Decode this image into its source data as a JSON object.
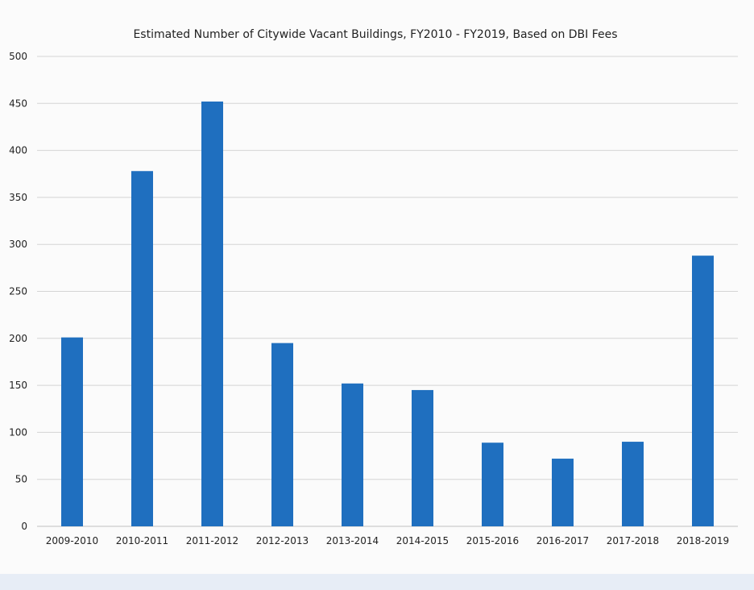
{
  "chart_data": {
    "type": "bar",
    "title": "Estimated Number of Citywide Vacant Buildings, FY2010 - FY2019, Based on DBI Fees",
    "xlabel": "",
    "ylabel": "",
    "categories": [
      "2009-2010",
      "2010-2011",
      "2011-2012",
      "2012-2013",
      "2013-2014",
      "2014-2015",
      "2015-2016",
      "2016-2017",
      "2017-2018",
      "2018-2019"
    ],
    "series": [
      {
        "values": [
          201,
          378,
          452,
          195,
          152,
          145,
          89,
          72,
          90,
          288
        ]
      }
    ],
    "ylim": [
      0,
      500
    ],
    "yticks": [
      "0",
      "50",
      "100",
      "150",
      "200",
      "250",
      "300",
      "350",
      "400",
      "450",
      "500"
    ],
    "grid": true,
    "legend": "none",
    "colors": {
      "bar": "#1f6fbf",
      "grid": "#d4d4d4",
      "text": "#222222"
    }
  }
}
